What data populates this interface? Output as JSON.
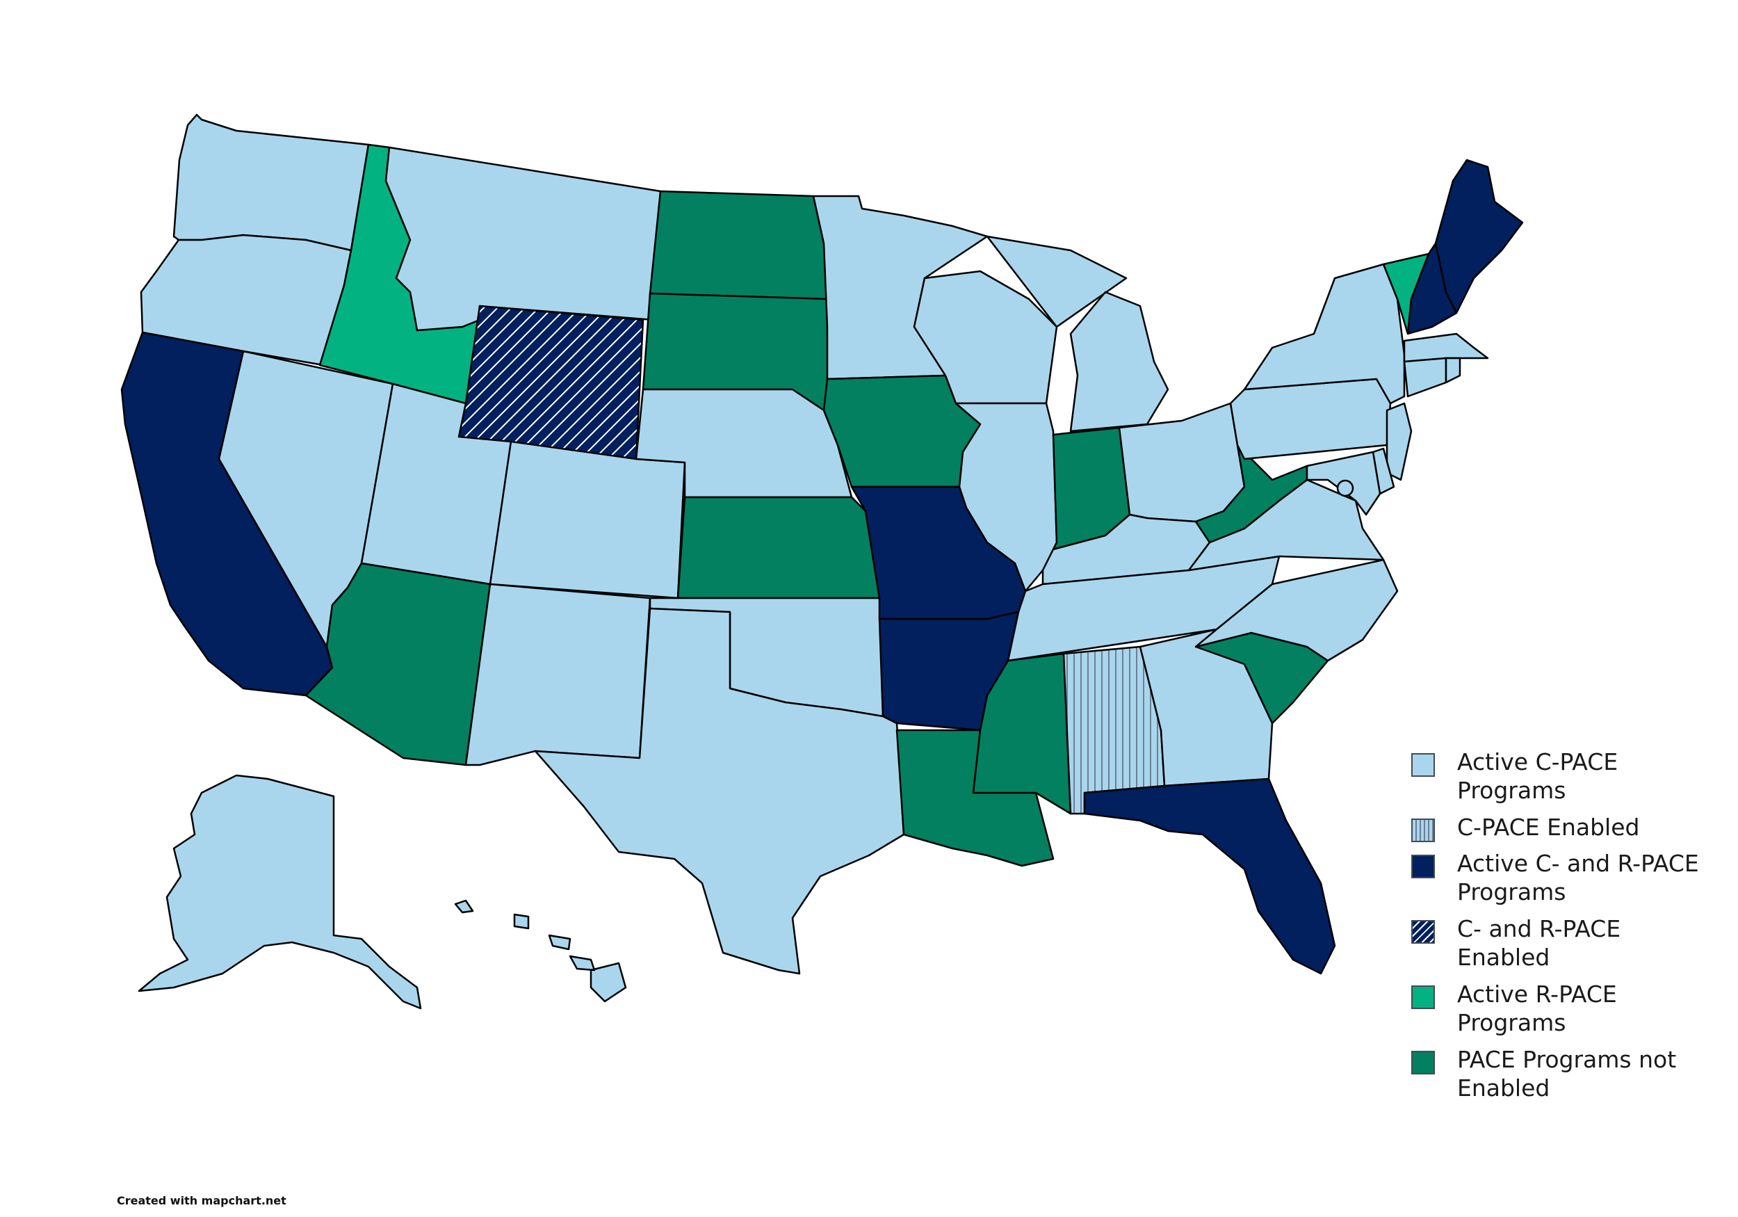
{
  "colors": {
    "active_c_pace": "#a9d6ed",
    "c_pace_enabled_fill": "#a9d6ed",
    "c_pace_enabled_hatch": "#6a7f96",
    "active_c_and_r_pace": "#021f5e",
    "c_and_r_enabled_fill": "#021f5e",
    "c_and_r_enabled_hatch": "#ffffff",
    "active_r_pace": "#03b281",
    "not_enabled": "#028060",
    "border": "#000000"
  },
  "legend": {
    "items": [
      {
        "key": "active_c_pace",
        "label": "Active C-PACE Programs"
      },
      {
        "key": "c_pace_enabled",
        "label": "C-PACE Enabled"
      },
      {
        "key": "active_c_and_r_pace",
        "label": "Active C- and R-PACE Programs"
      },
      {
        "key": "c_and_r_enabled",
        "label": "C- and R-PACE Enabled"
      },
      {
        "key": "active_r_pace",
        "label": "Active R-PACE Programs"
      },
      {
        "key": "not_enabled",
        "label": "PACE Programs not Enabled"
      }
    ]
  },
  "states": {
    "WA": "active_c_pace",
    "OR": "active_c_pace",
    "CA": "active_c_and_r_pace",
    "NV": "active_c_pace",
    "ID": "active_r_pace",
    "MT": "active_c_pace",
    "WY": "c_and_r_enabled",
    "UT": "active_c_pace",
    "AZ": "not_enabled",
    "CO": "active_c_pace",
    "NM": "active_c_pace",
    "ND": "not_enabled",
    "SD": "not_enabled",
    "NE": "active_c_pace",
    "KS": "not_enabled",
    "OK": "active_c_pace",
    "TX": "active_c_pace",
    "MN": "active_c_pace",
    "IA": "not_enabled",
    "MO": "active_c_and_r_pace",
    "AR": "active_c_and_r_pace",
    "LA": "not_enabled",
    "WI": "active_c_pace",
    "IL": "active_c_pace",
    "MI": "active_c_pace",
    "IN": "not_enabled",
    "OH": "active_c_pace",
    "KY": "active_c_pace",
    "TN": "active_c_pace",
    "MS": "not_enabled",
    "AL": "c_pace_enabled",
    "GA": "active_c_pace",
    "FL": "active_c_and_r_pace",
    "SC": "not_enabled",
    "NC": "active_c_pace",
    "VA": "active_c_pace",
    "WV": "not_enabled",
    "PA": "active_c_pace",
    "NY": "active_c_pace",
    "VT": "active_r_pace",
    "NH": "active_c_and_r_pace",
    "ME": "active_c_and_r_pace",
    "MA": "active_c_pace",
    "CT": "active_c_pace",
    "RI": "active_c_pace",
    "NJ": "active_c_pace",
    "DE": "active_c_pace",
    "MD": "active_c_pace",
    "DC": "active_c_pace",
    "AK": "active_c_pace",
    "HI": "active_c_pace"
  },
  "credit": "Created with mapchart.net"
}
